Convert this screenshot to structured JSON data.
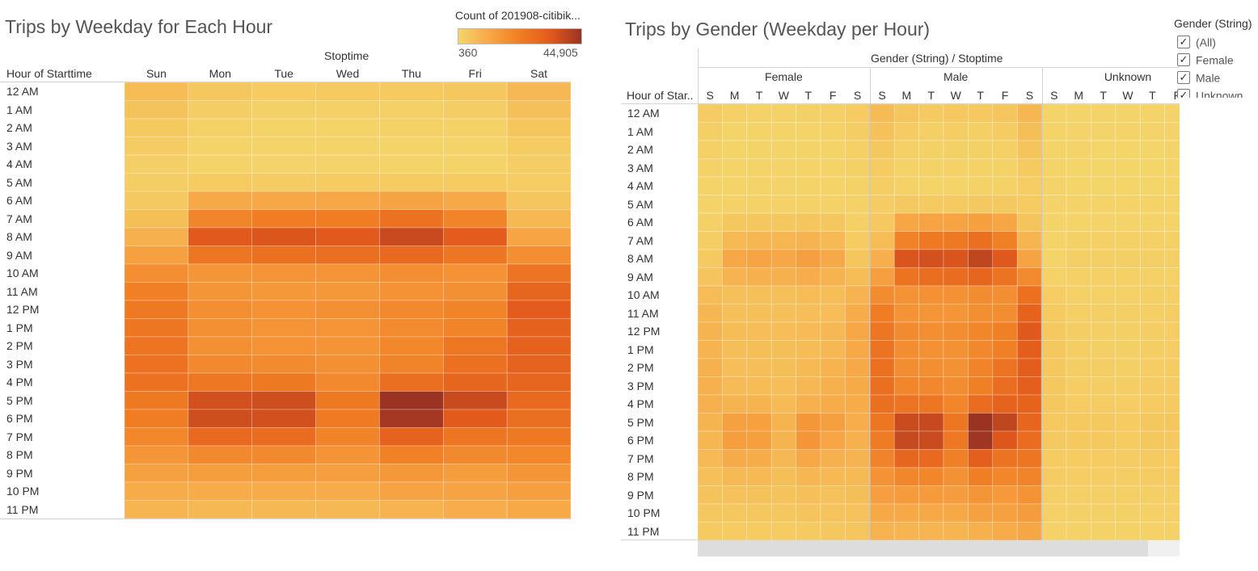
{
  "chart1": {
    "title": "Trips by Weekday for Each Hour",
    "column_header": "Stoptime",
    "row_header": "Hour of Starttime",
    "color_legend": {
      "title": "Count of 201908-citibik...",
      "min_label": "360",
      "max_label": "44,905"
    }
  },
  "chart2": {
    "title": "Trips by Gender (Weekday per Hour)",
    "column_header": "Gender (String) / Stoptime",
    "row_header": "Hour of Star..",
    "groups": [
      "Female",
      "Male",
      "Unknown"
    ],
    "day_abbrevs": [
      "S",
      "M",
      "T",
      "W",
      "T",
      "F",
      "S"
    ],
    "filter": {
      "title": "Gender (String)",
      "items": [
        {
          "label": "(All)",
          "checked": true
        },
        {
          "label": "Female",
          "checked": true
        },
        {
          "label": "Male",
          "checked": true
        },
        {
          "label": "Unknown",
          "checked": true
        }
      ]
    }
  },
  "chart_data": [
    {
      "type": "heatmap",
      "title": "Trips by Weekday for Each Hour",
      "xlabel": "Stoptime",
      "ylabel": "Hour of Starttime",
      "x": [
        "Sun",
        "Mon",
        "Tue",
        "Wed",
        "Thu",
        "Fri",
        "Sat"
      ],
      "y": [
        "12 AM",
        "1 AM",
        "2 AM",
        "3 AM",
        "4 AM",
        "5 AM",
        "6 AM",
        "7 AM",
        "8 AM",
        "9 AM",
        "10 AM",
        "11 AM",
        "12 PM",
        "1 PM",
        "2 PM",
        "3 PM",
        "4 PM",
        "5 PM",
        "6 PM",
        "7 PM",
        "8 PM",
        "9 PM",
        "10 PM",
        "11 PM"
      ],
      "color_scale": {
        "min": 360,
        "max": 44905,
        "colors": [
          "#f4d56a",
          "#f7a746",
          "#f07d24",
          "#e25a1c",
          "#9b3323"
        ]
      },
      "values": [
        [
          6500,
          3700,
          2800,
          3000,
          3100,
          3700,
          7300
        ],
        [
          4700,
          2000,
          1400,
          1600,
          1600,
          2100,
          5400
        ],
        [
          3500,
          1200,
          900,
          900,
          1000,
          1200,
          4000
        ],
        [
          2500,
          800,
          600,
          600,
          700,
          800,
          2800
        ],
        [
          1800,
          700,
          500,
          500,
          600,
          700,
          2000
        ],
        [
          2000,
          2800,
          2600,
          2700,
          2800,
          2800,
          2300
        ],
        [
          3200,
          11000,
          11500,
          11500,
          12500,
          11000,
          4200
        ],
        [
          5800,
          20500,
          23000,
          23000,
          26000,
          21000,
          7500
        ],
        [
          9000,
          34000,
          35000,
          34000,
          38000,
          33000,
          12000
        ],
        [
          13000,
          25000,
          26500,
          27000,
          29000,
          25000,
          18000
        ],
        [
          18000,
          16000,
          16500,
          16500,
          18000,
          17000,
          25500
        ],
        [
          22000,
          16000,
          15500,
          15500,
          17000,
          17500,
          30000
        ],
        [
          24000,
          18000,
          17000,
          17500,
          19500,
          21000,
          33000
        ],
        [
          25000,
          17500,
          16500,
          16500,
          19000,
          21000,
          31500
        ],
        [
          25500,
          17500,
          17000,
          16500,
          20000,
          25000,
          31500
        ],
        [
          26000,
          19500,
          19000,
          17500,
          21000,
          26500,
          31000
        ],
        [
          26000,
          24500,
          24000,
          19500,
          27000,
          30000,
          30000
        ],
        [
          24000,
          36500,
          37000,
          24000,
          44905,
          38000,
          29000
        ],
        [
          22500,
          37000,
          36500,
          23500,
          43500,
          33500,
          27000
        ],
        [
          20000,
          29000,
          28000,
          21000,
          31000,
          25000,
          24000
        ],
        [
          16000,
          19500,
          19500,
          16500,
          21500,
          19500,
          20000
        ],
        [
          13000,
          14000,
          14000,
          13500,
          15500,
          14500,
          16000
        ],
        [
          10500,
          10500,
          10500,
          10500,
          12500,
          12500,
          13500
        ],
        [
          8000,
          7500,
          7500,
          7500,
          8500,
          10000,
          11000
        ]
      ]
    },
    {
      "type": "heatmap",
      "title": "Trips by Gender (Weekday per Hour)",
      "xlabel": "Gender (String) / Stoptime",
      "ylabel": "Hour of Star..",
      "x_groups": [
        "Female",
        "Male",
        "Unknown"
      ],
      "x": [
        "S",
        "M",
        "T",
        "W",
        "T",
        "F",
        "S"
      ],
      "y": [
        "12 AM",
        "1 AM",
        "2 AM",
        "3 AM",
        "4 AM",
        "5 AM",
        "6 AM",
        "7 AM",
        "8 AM",
        "9 AM",
        "10 AM",
        "11 AM",
        "12 PM",
        "1 PM",
        "2 PM",
        "3 PM",
        "4 PM",
        "5 PM",
        "6 PM",
        "7 PM",
        "8 PM",
        "9 PM",
        "10 PM",
        "11 PM"
      ],
      "color_scale": {
        "min": 0,
        "max": 32000,
        "colors": [
          "#f4d56a",
          "#f7a746",
          "#f07d24",
          "#e25a1c",
          "#9b3323"
        ]
      },
      "values": {
        "Female": [
          [
            1500,
            800,
            600,
            600,
            700,
            900,
            1700
          ],
          [
            1100,
            400,
            300,
            300,
            350,
            450,
            1300
          ],
          [
            800,
            250,
            200,
            200,
            200,
            250,
            900
          ],
          [
            550,
            150,
            120,
            120,
            150,
            170,
            650
          ],
          [
            400,
            150,
            100,
            100,
            120,
            150,
            450
          ],
          [
            400,
            550,
            500,
            500,
            550,
            550,
            450
          ],
          [
            700,
            2400,
            2500,
            2500,
            2700,
            2400,
            900
          ],
          [
            1300,
            4800,
            5200,
            5300,
            6000,
            4800,
            1700
          ],
          [
            2000,
            8000,
            8500,
            8000,
            9500,
            7800,
            2700
          ],
          [
            3000,
            6000,
            6200,
            6500,
            7000,
            6000,
            4200
          ],
          [
            4300,
            3700,
            3800,
            3800,
            4200,
            4000,
            6000
          ],
          [
            5300,
            3700,
            3600,
            3600,
            4000,
            4100,
            7200
          ],
          [
            5800,
            4200,
            4000,
            4100,
            4500,
            5000,
            8000
          ],
          [
            6000,
            4000,
            3900,
            3900,
            4400,
            5000,
            7600
          ],
          [
            6200,
            4100,
            4000,
            3900,
            4700,
            5900,
            7600
          ],
          [
            6300,
            4500,
            4400,
            4100,
            5000,
            6300,
            7500
          ],
          [
            6300,
            5800,
            5700,
            4600,
            6400,
            7200,
            7300
          ],
          [
            5800,
            9200,
            9400,
            5800,
            11000,
            9500,
            7000
          ],
          [
            5400,
            9800,
            9600,
            5700,
            11300,
            8300,
            6500
          ],
          [
            4800,
            7400,
            7100,
            5000,
            8000,
            6200,
            5800
          ],
          [
            3800,
            4900,
            4900,
            3900,
            5400,
            4800,
            4800
          ],
          [
            3100,
            3400,
            3400,
            3200,
            3800,
            3500,
            3900
          ],
          [
            2500,
            2500,
            2500,
            2500,
            3000,
            3000,
            3300
          ],
          [
            1900,
            1800,
            1800,
            1800,
            2000,
            2400,
            2700
          ]
        ],
        "Male": [
          [
            4600,
            2700,
            2000,
            2200,
            2200,
            2600,
            5200
          ],
          [
            3400,
            1500,
            1000,
            1200,
            1100,
            1500,
            3900
          ],
          [
            2500,
            900,
            650,
            650,
            700,
            900,
            2900
          ],
          [
            1800,
            600,
            450,
            450,
            500,
            600,
            2000
          ],
          [
            1300,
            500,
            380,
            380,
            450,
            500,
            1400
          ],
          [
            1500,
            2100,
            1950,
            2000,
            2100,
            2100,
            1700
          ],
          [
            2300,
            8200,
            8600,
            8600,
            9400,
            8200,
            3000
          ],
          [
            4200,
            15000,
            17000,
            17000,
            19200,
            15500,
            5500
          ],
          [
            6600,
            25000,
            25800,
            25000,
            28000,
            24200,
            8800
          ],
          [
            9500,
            18300,
            19500,
            19800,
            21300,
            18300,
            13300
          ],
          [
            13200,
            11800,
            12200,
            12200,
            13200,
            12500,
            18800
          ],
          [
            16100,
            11800,
            11400,
            11400,
            12500,
            12900,
            22000
          ],
          [
            17600,
            13300,
            12500,
            12900,
            14300,
            15500,
            24300
          ],
          [
            18400,
            12900,
            12100,
            12100,
            14000,
            15500,
            23200
          ],
          [
            18700,
            12900,
            12500,
            12100,
            14700,
            18400,
            23200
          ],
          [
            19100,
            14300,
            14000,
            12900,
            15500,
            19500,
            22800
          ],
          [
            19100,
            18000,
            17600,
            14300,
            19800,
            22000,
            22000
          ],
          [
            17600,
            26800,
            27200,
            17600,
            32000,
            27900,
            21300
          ],
          [
            16500,
            27200,
            26800,
            17300,
            31500,
            24600,
            19800
          ],
          [
            14700,
            21300,
            20600,
            15500,
            22800,
            18400,
            17600
          ],
          [
            11800,
            14300,
            14300,
            12100,
            15800,
            14300,
            14700
          ],
          [
            9500,
            10300,
            10300,
            9900,
            11400,
            10600,
            11800
          ],
          [
            7700,
            7700,
            7700,
            7700,
            9200,
            9200,
            9900
          ],
          [
            5900,
            5500,
            5500,
            5500,
            6200,
            7300,
            8100
          ]
        ],
        "Unknown": [
          [
            400,
            200,
            200,
            200,
            200,
            200,
            400
          ],
          [
            300,
            100,
            100,
            100,
            100,
            100,
            300
          ],
          [
            200,
            100,
            50,
            50,
            50,
            100,
            200
          ],
          [
            150,
            50,
            50,
            50,
            50,
            50,
            150
          ],
          [
            100,
            50,
            50,
            50,
            50,
            50,
            100
          ],
          [
            100,
            150,
            150,
            150,
            150,
            150,
            100
          ],
          [
            200,
            400,
            400,
            400,
            400,
            400,
            300
          ],
          [
            300,
            700,
            800,
            800,
            800,
            700,
            400
          ],
          [
            400,
            1000,
            1100,
            1000,
            1100,
            1000,
            500
          ],
          [
            600,
            800,
            800,
            800,
            900,
            800,
            700
          ],
          [
            1400,
            900,
            900,
            900,
            1000,
            1000,
            1700
          ],
          [
            1900,
            1000,
            1000,
            1000,
            1100,
            1200,
            2300
          ],
          [
            2200,
            1200,
            1100,
            1100,
            1300,
            1400,
            2600
          ],
          [
            2400,
            1200,
            1100,
            1100,
            1300,
            1400,
            2600
          ],
          [
            2500,
            1200,
            1200,
            1100,
            1400,
            1500,
            2600
          ],
          [
            2500,
            1400,
            1300,
            1200,
            1500,
            1600,
            2600
          ],
          [
            2500,
            1600,
            1600,
            1400,
            1700,
            1900,
            2500
          ],
          [
            2300,
            2200,
            2200,
            1700,
            2400,
            2400,
            2400
          ],
          [
            2100,
            2200,
            2200,
            1700,
            2400,
            2200,
            2200
          ],
          [
            1800,
            1800,
            1800,
            1500,
            1900,
            1800,
            2000
          ],
          [
            1500,
            1400,
            1400,
            1300,
            1500,
            1500,
            1700
          ],
          [
            1100,
            1000,
            1000,
            1000,
            1100,
            1100,
            1300
          ],
          [
            800,
            700,
            700,
            700,
            800,
            800,
            1000
          ],
          [
            600,
            500,
            500,
            500,
            600,
            600,
            700
          ]
        ]
      }
    }
  ]
}
